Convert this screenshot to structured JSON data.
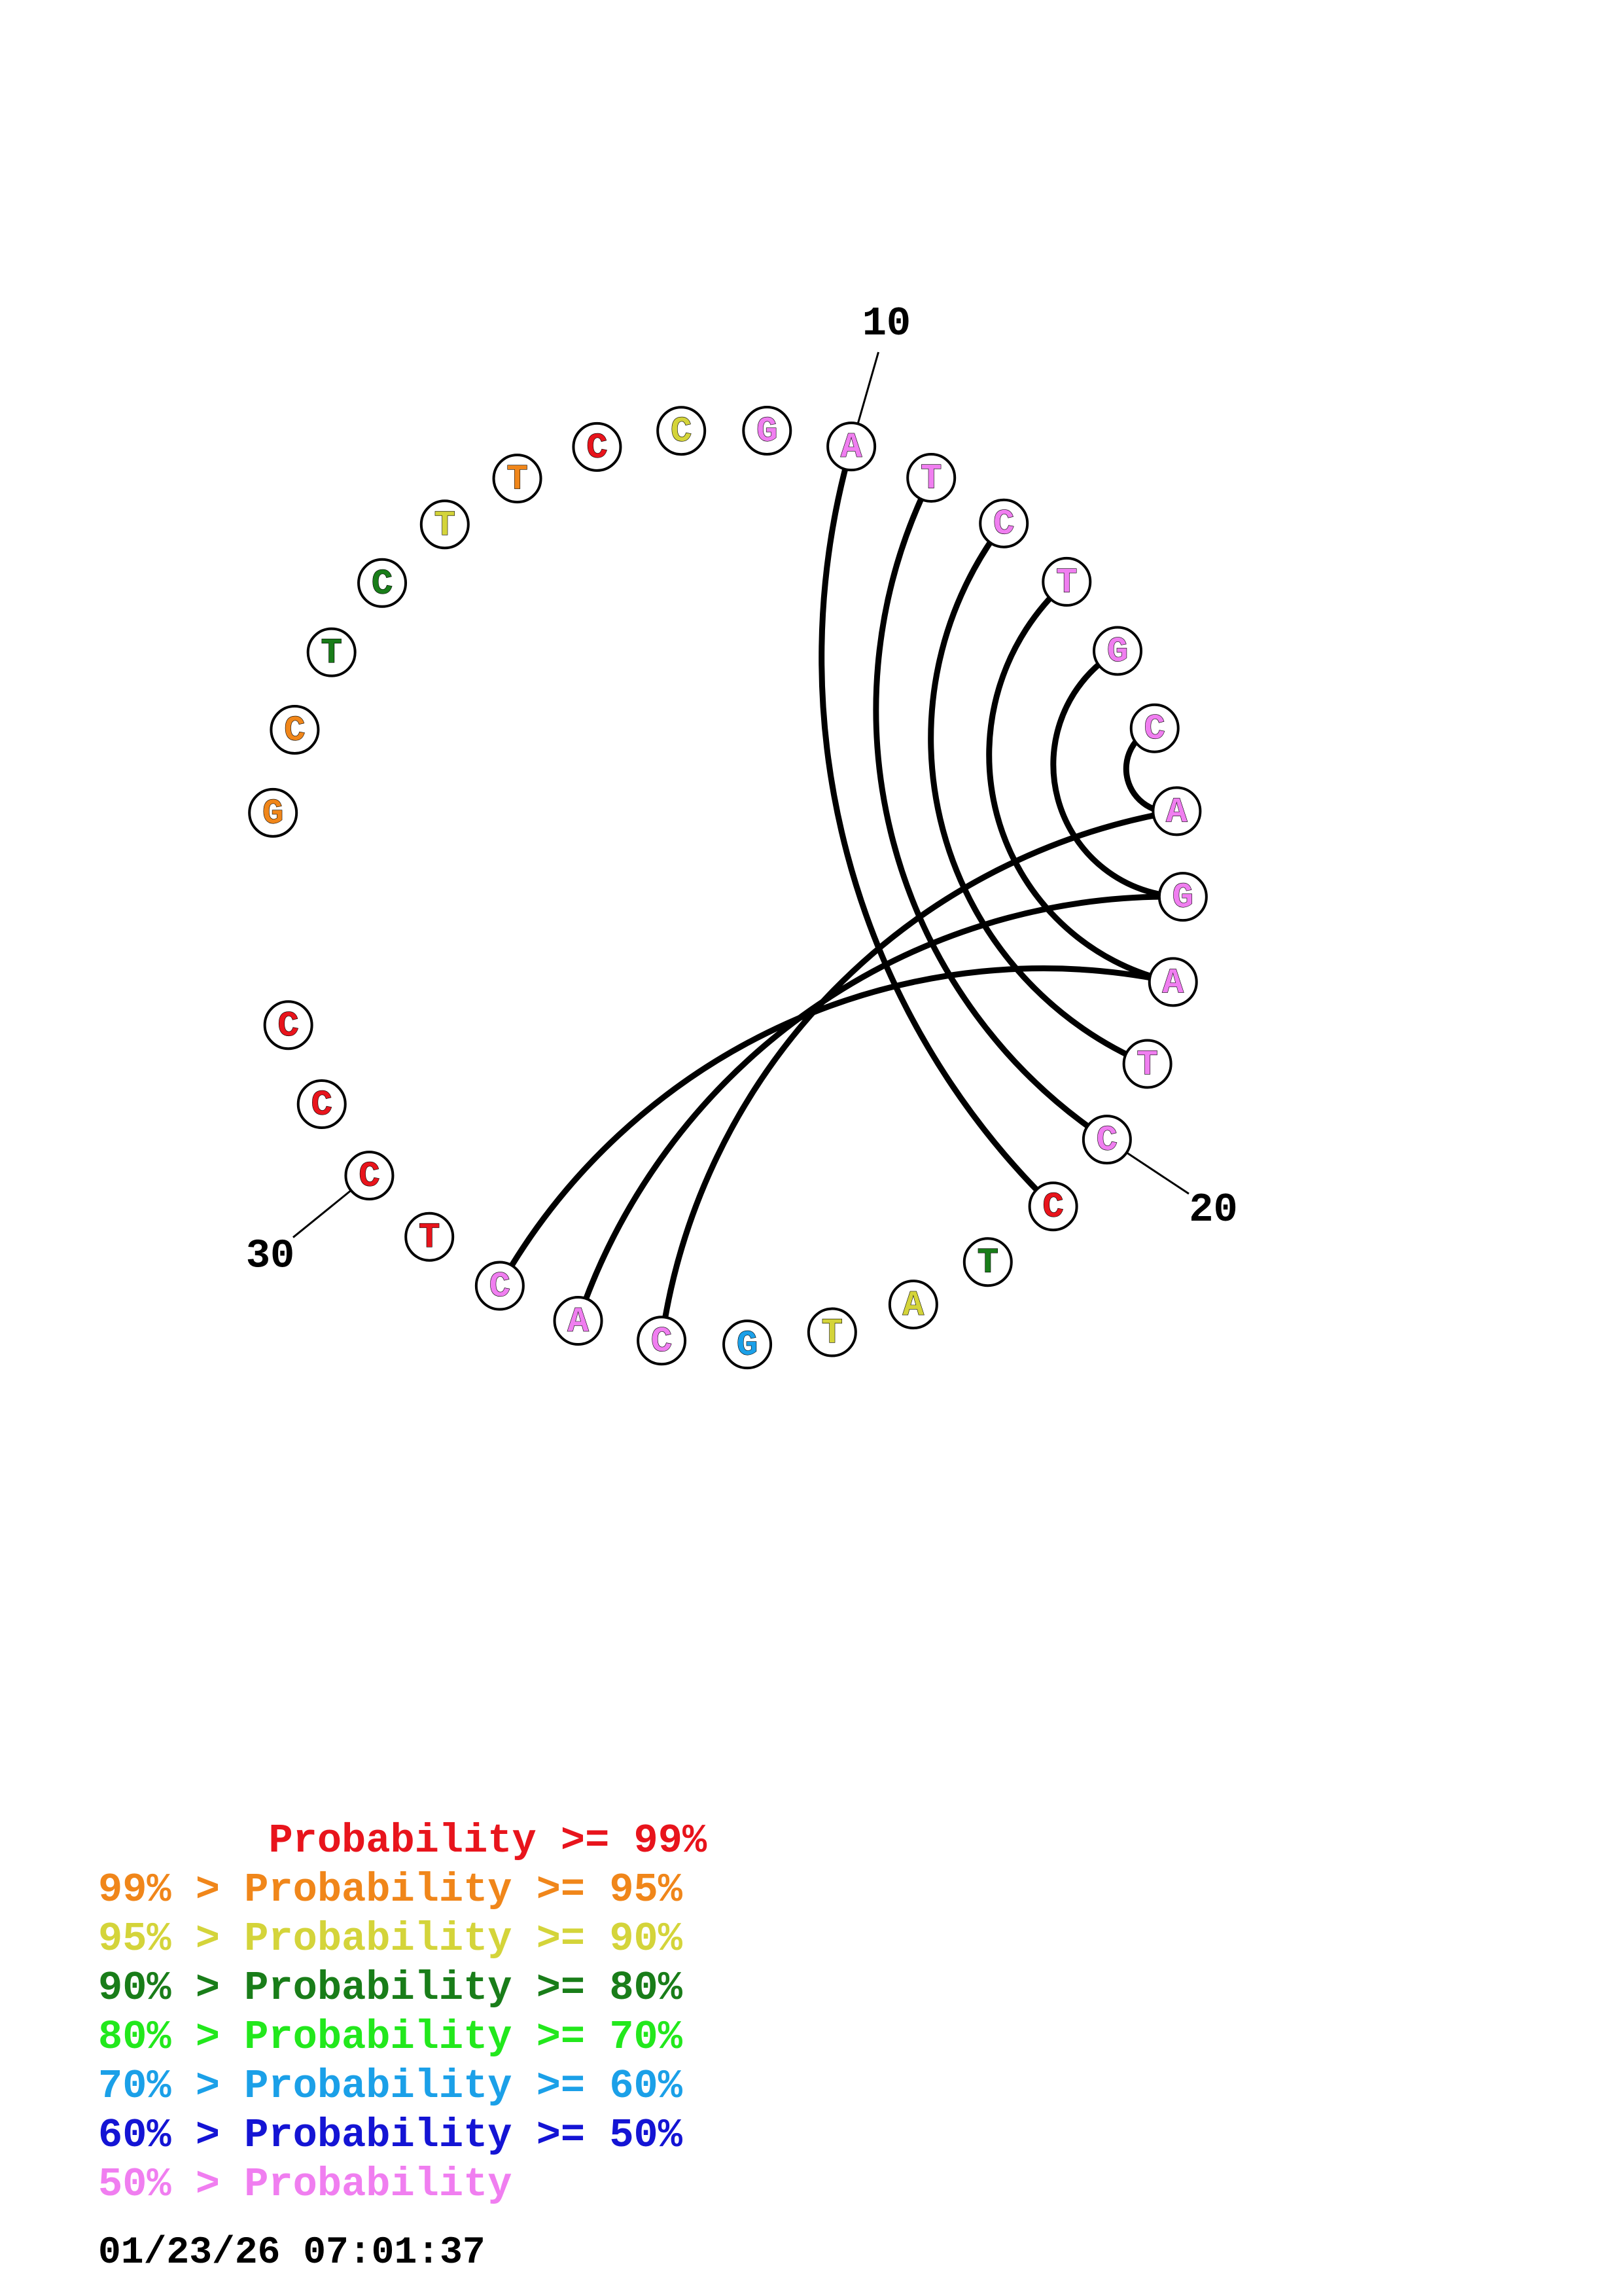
{
  "structure": {
    "sequence": [
      "G",
      "C",
      "T",
      "C",
      "T",
      "T",
      "C",
      "C",
      "G",
      "A",
      "T",
      "C",
      "T",
      "G",
      "C",
      "A",
      "G",
      "A",
      "T",
      "C",
      "C",
      "T",
      "A",
      "T",
      "G",
      "C",
      "A",
      "C",
      "T",
      "C",
      "C",
      "C"
    ],
    "confidence": [
      "orange",
      "orange",
      "dark-green",
      "dark-green",
      "yellow",
      "orange",
      "red",
      "yellow",
      "pink",
      "pink",
      "pink",
      "pink",
      "pink",
      "pink",
      "pink",
      "pink",
      "pink",
      "pink",
      "pink",
      "pink",
      "red",
      "dark-green",
      "yellow",
      "yellow",
      "light-blue",
      "pink",
      "pink",
      "pink",
      "red",
      "red",
      "red",
      "red"
    ],
    "pairs": [
      [
        9,
        20
      ],
      [
        10,
        19
      ],
      [
        11,
        18
      ],
      [
        12,
        17
      ],
      [
        13,
        16
      ],
      [
        14,
        15
      ],
      [
        15,
        25
      ],
      [
        16,
        26
      ],
      [
        17,
        27
      ]
    ],
    "tick_labels": [
      {
        "index": 10,
        "text": "10"
      },
      {
        "index": 20,
        "text": "20"
      },
      {
        "index": 30,
        "text": "30"
      }
    ]
  },
  "colors": {
    "red": "#e8141c",
    "orange": "#f0861a",
    "yellow": "#d4d43a",
    "dark-green": "#197d19",
    "light-green": "#22e81c",
    "light-blue": "#1ba0e8",
    "dark-blue": "#1414d4",
    "pink": "#f07ef0"
  },
  "legend": [
    {
      "text": "       Probability >= 99%",
      "color": "red"
    },
    {
      "text": "99% > Probability >= 95%",
      "color": "orange"
    },
    {
      "text": "95% > Probability >= 90%",
      "color": "yellow"
    },
    {
      "text": "90% > Probability >= 80%",
      "color": "dark-green"
    },
    {
      "text": "80% > Probability >= 70%",
      "color": "light-green"
    },
    {
      "text": "70% > Probability >= 60%",
      "color": "light-blue"
    },
    {
      "text": "60% > Probability >= 50%",
      "color": "dark-blue"
    },
    {
      "text": "50% > Probability",
      "color": "pink"
    }
  ],
  "timestamp": "01/23/26 07:01:37"
}
